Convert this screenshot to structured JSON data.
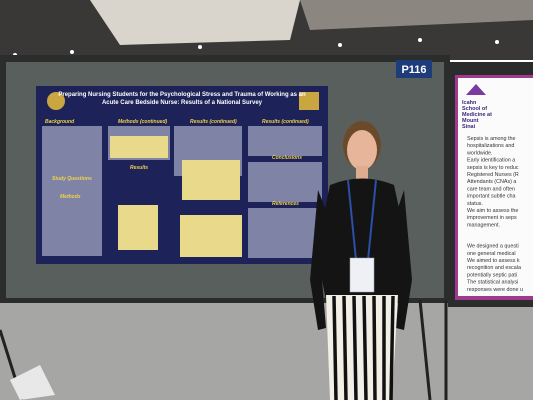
{
  "booth": {
    "label": "P116"
  },
  "poster": {
    "title_line1": "Preparing Nursing Students for the Psychological Stress and Trauma of Working as an",
    "title_line2": "Acute Care Bedside Nurse: Results of a National Survey",
    "headers": [
      "Background",
      "Methods (continued)",
      "Results (continued)",
      "Results (continued)",
      "Results",
      "Study Questions",
      "Conclusions",
      "Methods",
      "References"
    ]
  },
  "side_poster": {
    "school": [
      "Icahn",
      "School of",
      "Medicine at",
      "Mount",
      "Sinai"
    ],
    "lines": [
      "Sepsis is among the",
      "hospitalizations and",
      "worldwide.",
      "Early identification a",
      "sepsis is key to reduc",
      "Registered Nurses (R",
      "Attendants (CNAs) a",
      "care team and often",
      "important subtle cha",
      "status.",
      "We aim to assess the",
      "improvement in seps",
      "management.",
      "We designed a questi",
      "one general medical",
      "We aimed to assess k",
      "recognition and escala",
      "potentially septic pati",
      "The statistical analysi",
      "responses were done u"
    ]
  }
}
